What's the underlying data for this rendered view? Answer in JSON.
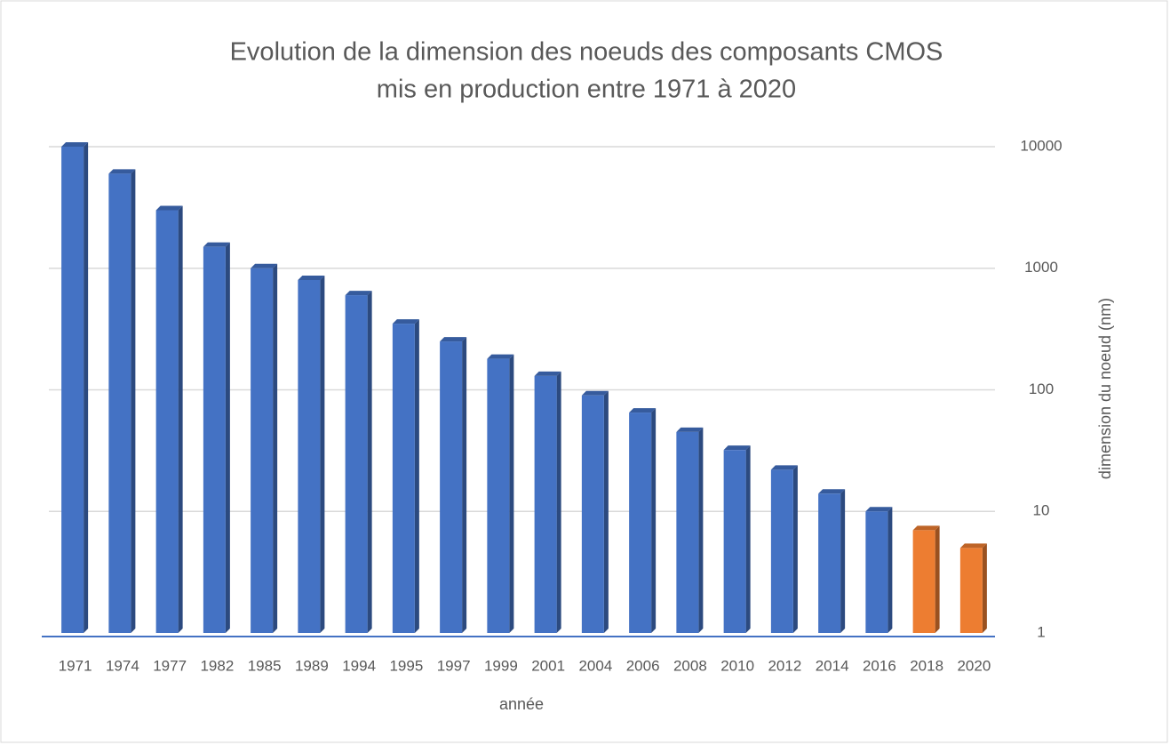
{
  "chart_data": {
    "type": "bar",
    "title": [
      "Evolution de la dimension des noeuds des composants CMOS",
      "mis en production entre 1971 à 2020"
    ],
    "x_label": "année",
    "y_label": "dimension du noeud (nm)",
    "categories": [
      "1971",
      "1974",
      "1977",
      "1982",
      "1985",
      "1989",
      "1994",
      "1995",
      "1997",
      "1999",
      "2001",
      "2004",
      "2006",
      "2008",
      "2010",
      "2012",
      "2014",
      "2016",
      "2018",
      "2020"
    ],
    "values": [
      10000,
      6000,
      3000,
      1500,
      1000,
      800,
      600,
      350,
      250,
      180,
      130,
      90,
      65,
      45,
      32,
      22,
      14,
      10,
      7,
      5
    ],
    "colors": [
      "#4472c4",
      "#4472c4",
      "#4472c4",
      "#4472c4",
      "#4472c4",
      "#4472c4",
      "#4472c4",
      "#4472c4",
      "#4472c4",
      "#4472c4",
      "#4472c4",
      "#4472c4",
      "#4472c4",
      "#4472c4",
      "#4472c4",
      "#4472c4",
      "#4472c4",
      "#4472c4",
      "#ed7d31",
      "#ed7d31"
    ],
    "ylim": [
      1,
      10000
    ],
    "yticks": [
      1,
      10,
      100,
      1000,
      10000
    ],
    "log_scale": true,
    "grid": true,
    "y_axis_side": "right"
  }
}
